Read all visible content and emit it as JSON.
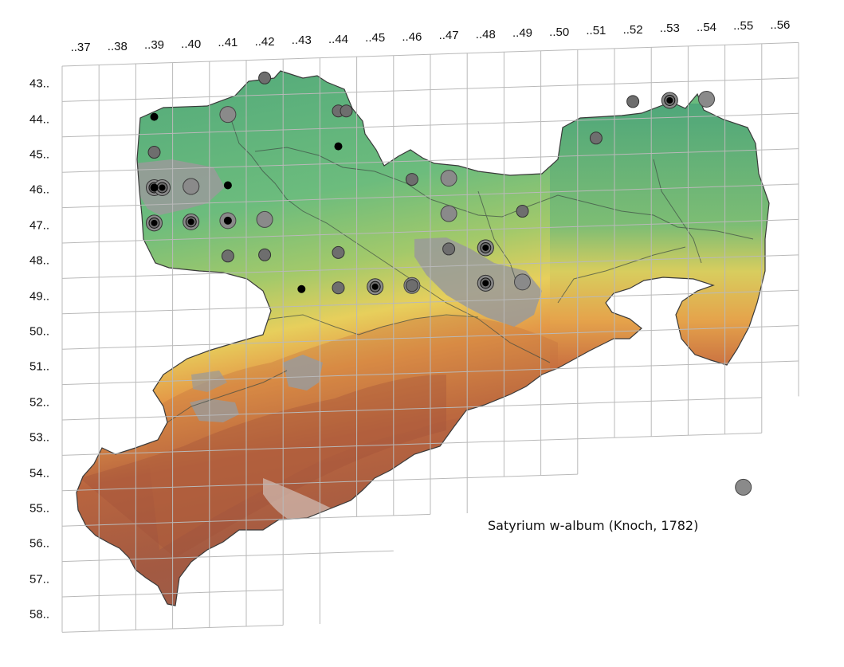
{
  "species_name": "Satyrium w-album (Knoch, 1782)",
  "grid": {
    "columns": [
      "..37",
      "..38",
      "..39",
      "..40",
      "..41",
      "..42",
      "..43",
      "..44",
      "..45",
      "..46",
      "..47",
      "..48",
      "..49",
      "..50",
      "..51",
      "..52",
      "..53",
      "..54",
      "..55",
      "..56"
    ],
    "rows": [
      "43..",
      "44..",
      "45..",
      "46..",
      "47..",
      "48..",
      "49..",
      "50..",
      "51..",
      "52..",
      "53..",
      "54..",
      "55..",
      "56..",
      "57..",
      "58.."
    ]
  },
  "legend_colors": {
    "grid_line": "#b9b9b9",
    "lowland": "#5fb37a",
    "midland": "#e8c45a",
    "upland": "#a8553c",
    "urban": "#9a9a9a",
    "record_large": "#8a8a8a",
    "record_medium": "#6e6e6e",
    "record_small": "#000000"
  },
  "records": [
    {
      "col": "..39",
      "row": "44..",
      "type": "small"
    },
    {
      "col": "..41",
      "row": "44..",
      "type": "small"
    },
    {
      "col": "..42",
      "row": "43..",
      "type": "medium"
    },
    {
      "col": "..41",
      "row": "44..",
      "type": "large"
    },
    {
      "col": "..44",
      "row": "44..",
      "type": "medium"
    },
    {
      "col": "..44",
      "row": "44..",
      "type": "medium2"
    },
    {
      "col": "..44",
      "row": "45..",
      "type": "small"
    },
    {
      "col": "..39",
      "row": "45..",
      "type": "medium"
    },
    {
      "col": "..39",
      "row": "46..",
      "type": "ring"
    },
    {
      "col": "..39",
      "row": "46..",
      "type": "ring2"
    },
    {
      "col": "..40",
      "row": "46..",
      "type": "ring"
    },
    {
      "col": "..40",
      "row": "46..",
      "type": "large"
    },
    {
      "col": "..41",
      "row": "46..",
      "type": "small"
    },
    {
      "col": "..39",
      "row": "46..",
      "type": "small"
    },
    {
      "col": "..40",
      "row": "47..",
      "type": "ring"
    },
    {
      "col": "..41",
      "row": "47..",
      "type": "large"
    },
    {
      "col": "..42",
      "row": "47..",
      "type": "medium"
    },
    {
      "col": "..39",
      "row": "47..",
      "type": "ring"
    },
    {
      "col": "..41",
      "row": "47..",
      "type": "small"
    },
    {
      "col": "..42",
      "row": "47..",
      "type": "large"
    },
    {
      "col": "..41",
      "row": "48..",
      "type": "medium"
    },
    {
      "col": "..42",
      "row": "48..",
      "type": "medium"
    },
    {
      "col": "..44",
      "row": "48..",
      "type": "medium"
    },
    {
      "col": "..44",
      "row": "49..",
      "type": "small"
    },
    {
      "col": "..43",
      "row": "49..",
      "type": "small"
    },
    {
      "col": "..44",
      "row": "49..",
      "type": "medium"
    },
    {
      "col": "..45",
      "row": "49..",
      "type": "ring"
    },
    {
      "col": "..46",
      "row": "49..",
      "type": "large"
    },
    {
      "col": "..46",
      "row": "49..",
      "type": "medium"
    },
    {
      "col": "..47",
      "row": "48..",
      "type": "medium"
    },
    {
      "col": "..47",
      "row": "47..",
      "type": "large"
    },
    {
      "col": "..47",
      "row": "46..",
      "type": "large"
    },
    {
      "col": "..46",
      "row": "46..",
      "type": "medium"
    },
    {
      "col": "..48",
      "row": "48..",
      "type": "large"
    },
    {
      "col": "..48",
      "row": "48..",
      "type": "ring"
    },
    {
      "col": "..48",
      "row": "49..",
      "type": "large"
    },
    {
      "col": "..48",
      "row": "49..",
      "type": "ring"
    },
    {
      "col": "..49",
      "row": "49..",
      "type": "large"
    },
    {
      "col": "..49",
      "row": "47..",
      "type": "medium"
    },
    {
      "col": "..51",
      "row": "45..",
      "type": "medium"
    },
    {
      "col": "..52",
      "row": "44..",
      "type": "medium"
    },
    {
      "col": "..53",
      "row": "44..",
      "type": "ring"
    },
    {
      "col": "..54",
      "row": "44..",
      "type": "large"
    },
    {
      "col": "..55",
      "row": "55..",
      "type": "large"
    }
  ]
}
